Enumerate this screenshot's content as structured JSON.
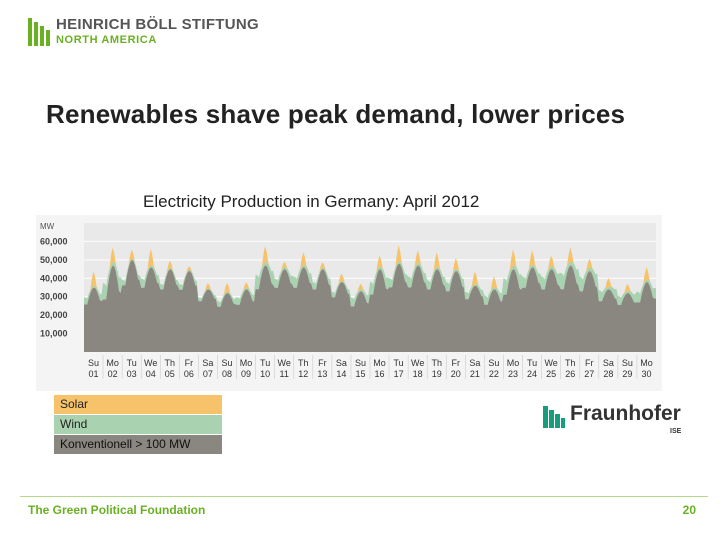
{
  "header": {
    "logo_title": "HEINRICH BÖLL STIFTUNG",
    "logo_subtitle": "NORTH AMERICA"
  },
  "slide": {
    "title": "Renewables shave peak demand, lower prices"
  },
  "colors": {
    "brand_green": "#6ab023",
    "solar": "#f6c26a",
    "wind": "#a9d3b0",
    "conventional": "#8a8680",
    "chart_bg": "#e9e9e9",
    "fraunhofer_green": "#179c7d"
  },
  "chart_data": {
    "type": "area",
    "title": "Electricity Production in Germany: April 2012",
    "ylabel": "MW",
    "ylim": [
      0,
      70000
    ],
    "yticks": [
      10000,
      20000,
      30000,
      40000,
      50000,
      60000
    ],
    "ytick_labels": [
      "10,000",
      "20,000",
      "30,000",
      "40,000",
      "50,000",
      "60,000"
    ],
    "unit_label": "MW",
    "days": [
      {
        "wd": "Su",
        "d": "01"
      },
      {
        "wd": "Mo",
        "d": "02"
      },
      {
        "wd": "Tu",
        "d": "03"
      },
      {
        "wd": "We",
        "d": "04"
      },
      {
        "wd": "Th",
        "d": "05"
      },
      {
        "wd": "Fr",
        "d": "06"
      },
      {
        "wd": "Sa",
        "d": "07"
      },
      {
        "wd": "Su",
        "d": "08"
      },
      {
        "wd": "Mo",
        "d": "09"
      },
      {
        "wd": "Tu",
        "d": "10"
      },
      {
        "wd": "We",
        "d": "11"
      },
      {
        "wd": "Th",
        "d": "12"
      },
      {
        "wd": "Fr",
        "d": "13"
      },
      {
        "wd": "Sa",
        "d": "14"
      },
      {
        "wd": "Su",
        "d": "15"
      },
      {
        "wd": "Mo",
        "d": "16"
      },
      {
        "wd": "Tu",
        "d": "17"
      },
      {
        "wd": "We",
        "d": "18"
      },
      {
        "wd": "Th",
        "d": "19"
      },
      {
        "wd": "Fr",
        "d": "20"
      },
      {
        "wd": "Sa",
        "d": "21"
      },
      {
        "wd": "Su",
        "d": "22"
      },
      {
        "wd": "Mo",
        "d": "23"
      },
      {
        "wd": "Tu",
        "d": "24"
      },
      {
        "wd": "We",
        "d": "25"
      },
      {
        "wd": "Th",
        "d": "26"
      },
      {
        "wd": "Fr",
        "d": "27"
      },
      {
        "wd": "Sa",
        "d": "28"
      },
      {
        "wd": "Su",
        "d": "29"
      },
      {
        "wd": "Mo",
        "d": "30"
      }
    ],
    "series": [
      {
        "name": "Konventionell > 100 MW",
        "daily_peak": [
          35000,
          47000,
          50000,
          46000,
          45000,
          44000,
          34000,
          32000,
          34000,
          47000,
          45000,
          46000,
          45000,
          38000,
          33000,
          45000,
          48000,
          47000,
          45000,
          44000,
          36000,
          34000,
          45000,
          46000,
          45000,
          47000,
          44000,
          34000,
          32000,
          38000
        ],
        "daily_min": [
          25000,
          27000,
          35000,
          34000,
          33000,
          33000,
          27000,
          24000,
          25000,
          33000,
          34000,
          34000,
          33000,
          29000,
          24000,
          30000,
          34000,
          34000,
          33000,
          32000,
          28000,
          25000,
          30000,
          34000,
          33000,
          33000,
          32000,
          27000,
          25000,
          26000
        ]
      },
      {
        "name": "Wind",
        "daily_peak": [
          4000,
          9000,
          3000,
          5000,
          3000,
          3000,
          2000,
          3000,
          4000,
          8000,
          5000,
          6000,
          4000,
          3000,
          5000,
          7000,
          5000,
          6000,
          5000,
          5000,
          4000,
          5000,
          9000,
          6000,
          7000,
          9000,
          8000,
          6000,
          5000,
          6000
        ]
      },
      {
        "name": "Solar",
        "daily_peak": [
          8000,
          8000,
          5000,
          9000,
          4000,
          2000,
          3000,
          5000,
          3000,
          9000,
          3000,
          7000,
          3000,
          4000,
          3000,
          6000,
          9000,
          7000,
          8000,
          6000,
          7000,
          6000,
          9000,
          8000,
          6000,
          8000,
          5000,
          5000,
          4000,
          7000
        ]
      }
    ],
    "legend": [
      "Solar",
      "Wind",
      "Konventionell > 100 MW"
    ],
    "legend_position": "bottom-left"
  },
  "branding": {
    "fraunhofer_name": "Fraunhofer",
    "fraunhofer_sub": "ISE"
  },
  "footer": {
    "text": "The Green Political Foundation",
    "page_number": "20"
  }
}
